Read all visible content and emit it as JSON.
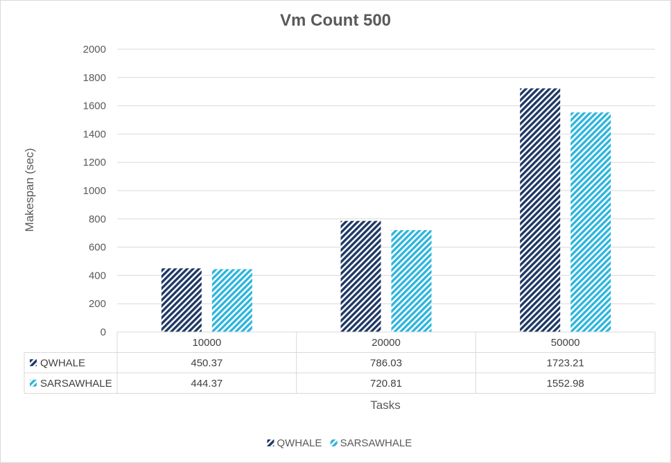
{
  "chart_data": {
    "type": "bar",
    "title": "Vm Count 500",
    "xlabel": "Tasks",
    "ylabel": "Makespan (sec)",
    "categories": [
      "10000",
      "20000",
      "50000"
    ],
    "ylim": [
      0,
      2000
    ],
    "yticks": [
      0,
      200,
      400,
      600,
      800,
      1000,
      1200,
      1400,
      1600,
      1800,
      2000
    ],
    "grid": true,
    "legend_position": "bottom",
    "data_table": true,
    "series": [
      {
        "name": "QWHALE",
        "values": [
          450.37,
          786.03,
          1723.21
        ],
        "labels": [
          "450.37",
          "786.03",
          "1723.21"
        ],
        "color": "#1f3864",
        "pattern": "diagonal-stripes"
      },
      {
        "name": "SARSAWHALE",
        "values": [
          444.37,
          720.81,
          1552.98
        ],
        "labels": [
          "444.37",
          "720.81",
          "1552.98"
        ],
        "color": "#2eb5dd",
        "pattern": "diagonal-stripes"
      }
    ]
  }
}
